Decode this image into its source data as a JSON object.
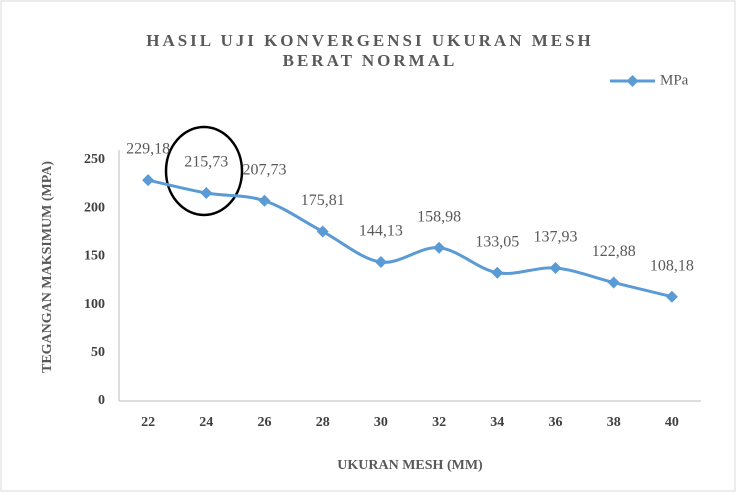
{
  "chart_data": {
    "type": "line",
    "title": [
      "HASIL UJI KONVERGENSI UKURAN MESH",
      "BERAT NORMAL"
    ],
    "x_label": "UKURAN MESH (MM)",
    "y_label": "TEGANGAN MAKSIMUM (MPA)",
    "categories": [
      "22",
      "24",
      "26",
      "28",
      "30",
      "32",
      "34",
      "36",
      "38",
      "40"
    ],
    "series": [
      {
        "name": "MPa",
        "color": "#5b9bd5",
        "values": [
          229.18,
          215.73,
          207.73,
          175.81,
          144.13,
          158.98,
          133.05,
          137.93,
          122.88,
          108.18
        ],
        "value_labels": [
          "229,18",
          "215,73",
          "207,73",
          "175,81",
          "144,13",
          "158,98",
          "133,05",
          "137,93",
          "122,88",
          "108,18"
        ]
      }
    ],
    "ylim": [
      0,
      250
    ],
    "yticks": [
      0,
      50,
      100,
      150,
      200,
      250
    ],
    "grid": false,
    "smooth": true,
    "legend": "top-right"
  }
}
